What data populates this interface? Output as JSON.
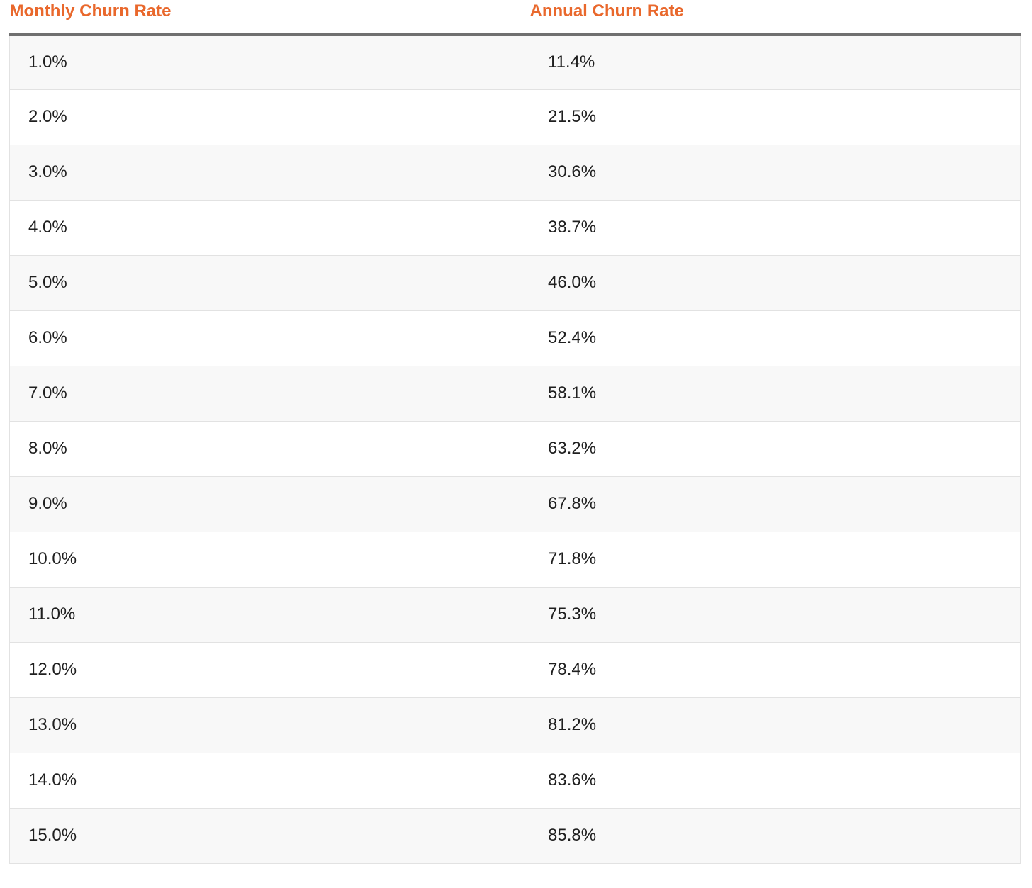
{
  "table": {
    "headers": [
      "Monthly Churn Rate",
      "Annual Churn Rate"
    ],
    "rows": [
      [
        "1.0%",
        "11.4%"
      ],
      [
        "2.0%",
        "21.5%"
      ],
      [
        "3.0%",
        "30.6%"
      ],
      [
        "4.0%",
        "38.7%"
      ],
      [
        "5.0%",
        "46.0%"
      ],
      [
        "6.0%",
        "52.4%"
      ],
      [
        "7.0%",
        "58.1%"
      ],
      [
        "8.0%",
        "63.2%"
      ],
      [
        "9.0%",
        "67.8%"
      ],
      [
        "10.0%",
        "71.8%"
      ],
      [
        "11.0%",
        "75.3%"
      ],
      [
        "12.0%",
        "78.4%"
      ],
      [
        "13.0%",
        "81.2%"
      ],
      [
        "14.0%",
        "83.6%"
      ],
      [
        "15.0%",
        "85.8%"
      ]
    ]
  },
  "colors": {
    "header_text": "#e9682c",
    "header_rule": "#707070",
    "row_stripe": "#f8f8f8",
    "cell_border": "#e2e2e2"
  }
}
